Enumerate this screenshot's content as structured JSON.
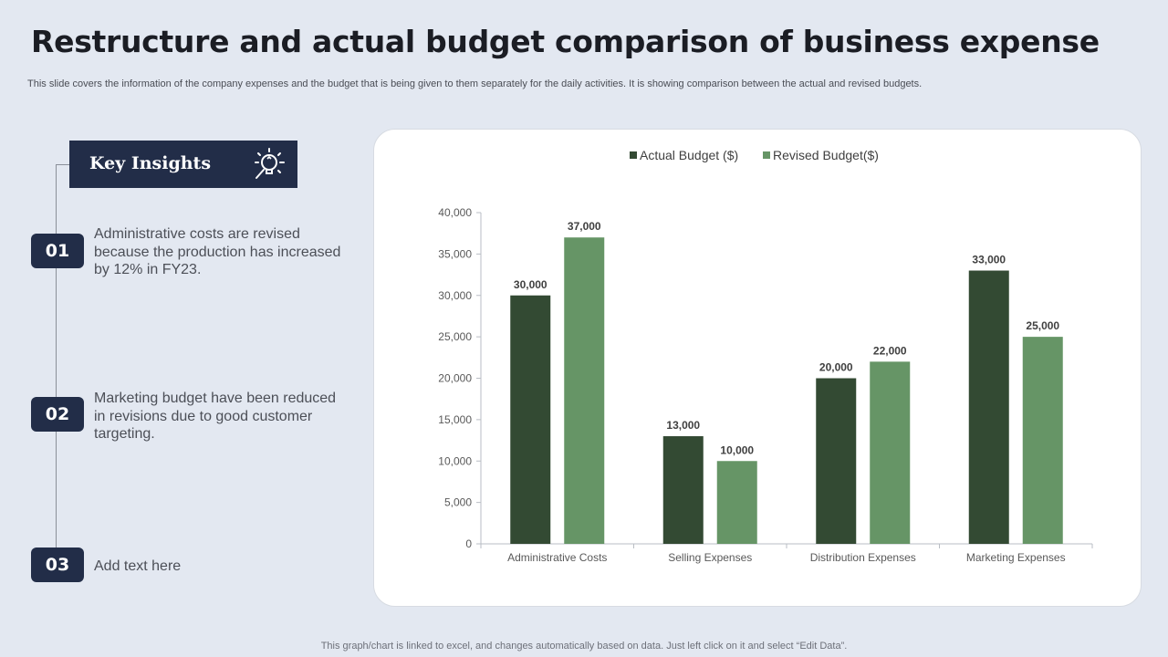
{
  "slide": {
    "title": "Restructure and actual budget comparison of business expense",
    "subtitle": "This slide covers the information of the company expenses and the budget that is being given to them separately for the daily activities. It is showing comparison between the actual and revised budgets.",
    "footer": "This graph/chart is linked to excel, and changes automatically based on data. Just left click on it and select “Edit Data”."
  },
  "insights": {
    "heading": "Key Insights",
    "icon": "lightbulb-magnifier-icon",
    "items": [
      {
        "number": "01",
        "text": "Administrative costs are revised because the production has increased by 12% in FY23."
      },
      {
        "number": "02",
        "text": "Marketing budget have been reduced in revisions due to good customer targeting."
      },
      {
        "number": "03",
        "text": "Add text here"
      }
    ]
  },
  "colors": {
    "badge": "#222d48",
    "actual": "#334a33",
    "revised": "#669566",
    "background": "#e3e8f1"
  },
  "chart_data": {
    "type": "bar",
    "categories": [
      "Administrative Costs",
      "Selling Expenses",
      "Distribution Expenses",
      "Marketing Expenses"
    ],
    "series": [
      {
        "name": "Actual Budget ($)",
        "values": [
          30000,
          13000,
          20000,
          33000
        ],
        "labels": [
          "30,000",
          "13,000",
          "20,000",
          "33,000"
        ],
        "color": "#334a33"
      },
      {
        "name": "Revised Budget($)",
        "values": [
          37000,
          10000,
          22000,
          25000
        ],
        "labels": [
          "37,000",
          "10,000",
          "22,000",
          "25,000"
        ],
        "color": "#669566"
      }
    ],
    "yticks": [
      0,
      5000,
      10000,
      15000,
      20000,
      25000,
      30000,
      35000,
      40000
    ],
    "ytick_labels": [
      "0",
      "5,000",
      "10,000",
      "15,000",
      "20,000",
      "25,000",
      "30,000",
      "35,000",
      "40,000"
    ],
    "ylim": [
      0,
      40000
    ],
    "legend_position": "top-center",
    "grid": false
  }
}
